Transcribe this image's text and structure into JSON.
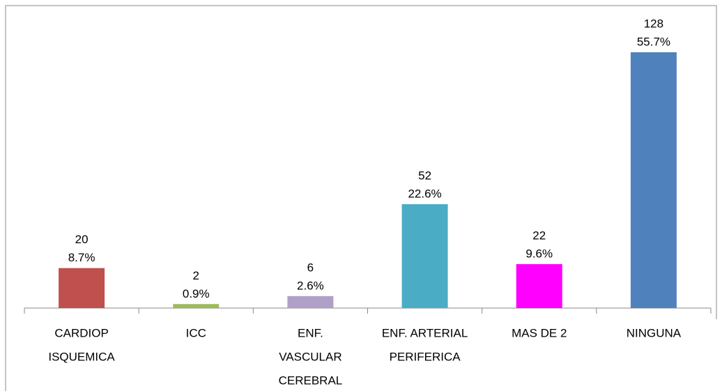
{
  "chart_data": {
    "type": "bar",
    "categories": [
      [
        "CARDIOP",
        "ISQUEMICA"
      ],
      [
        "ICC"
      ],
      [
        "ENF.",
        "VASCULAR",
        "CEREBRAL"
      ],
      [
        "ENF. ARTERIAL",
        "PERIFERICA"
      ],
      [
        "MAS DE 2"
      ],
      [
        "NINGUNA"
      ]
    ],
    "values": [
      20,
      2,
      6,
      52,
      22,
      128
    ],
    "percent_labels": [
      "8.7%",
      "0.9%",
      "2.6%",
      "22.6%",
      "9.6%",
      "55.7%"
    ],
    "colors": [
      "#c0504d",
      "#9bbb59",
      "#b0a0c8",
      "#4bacc6",
      "#ff00ff",
      "#4f81bd"
    ]
  }
}
